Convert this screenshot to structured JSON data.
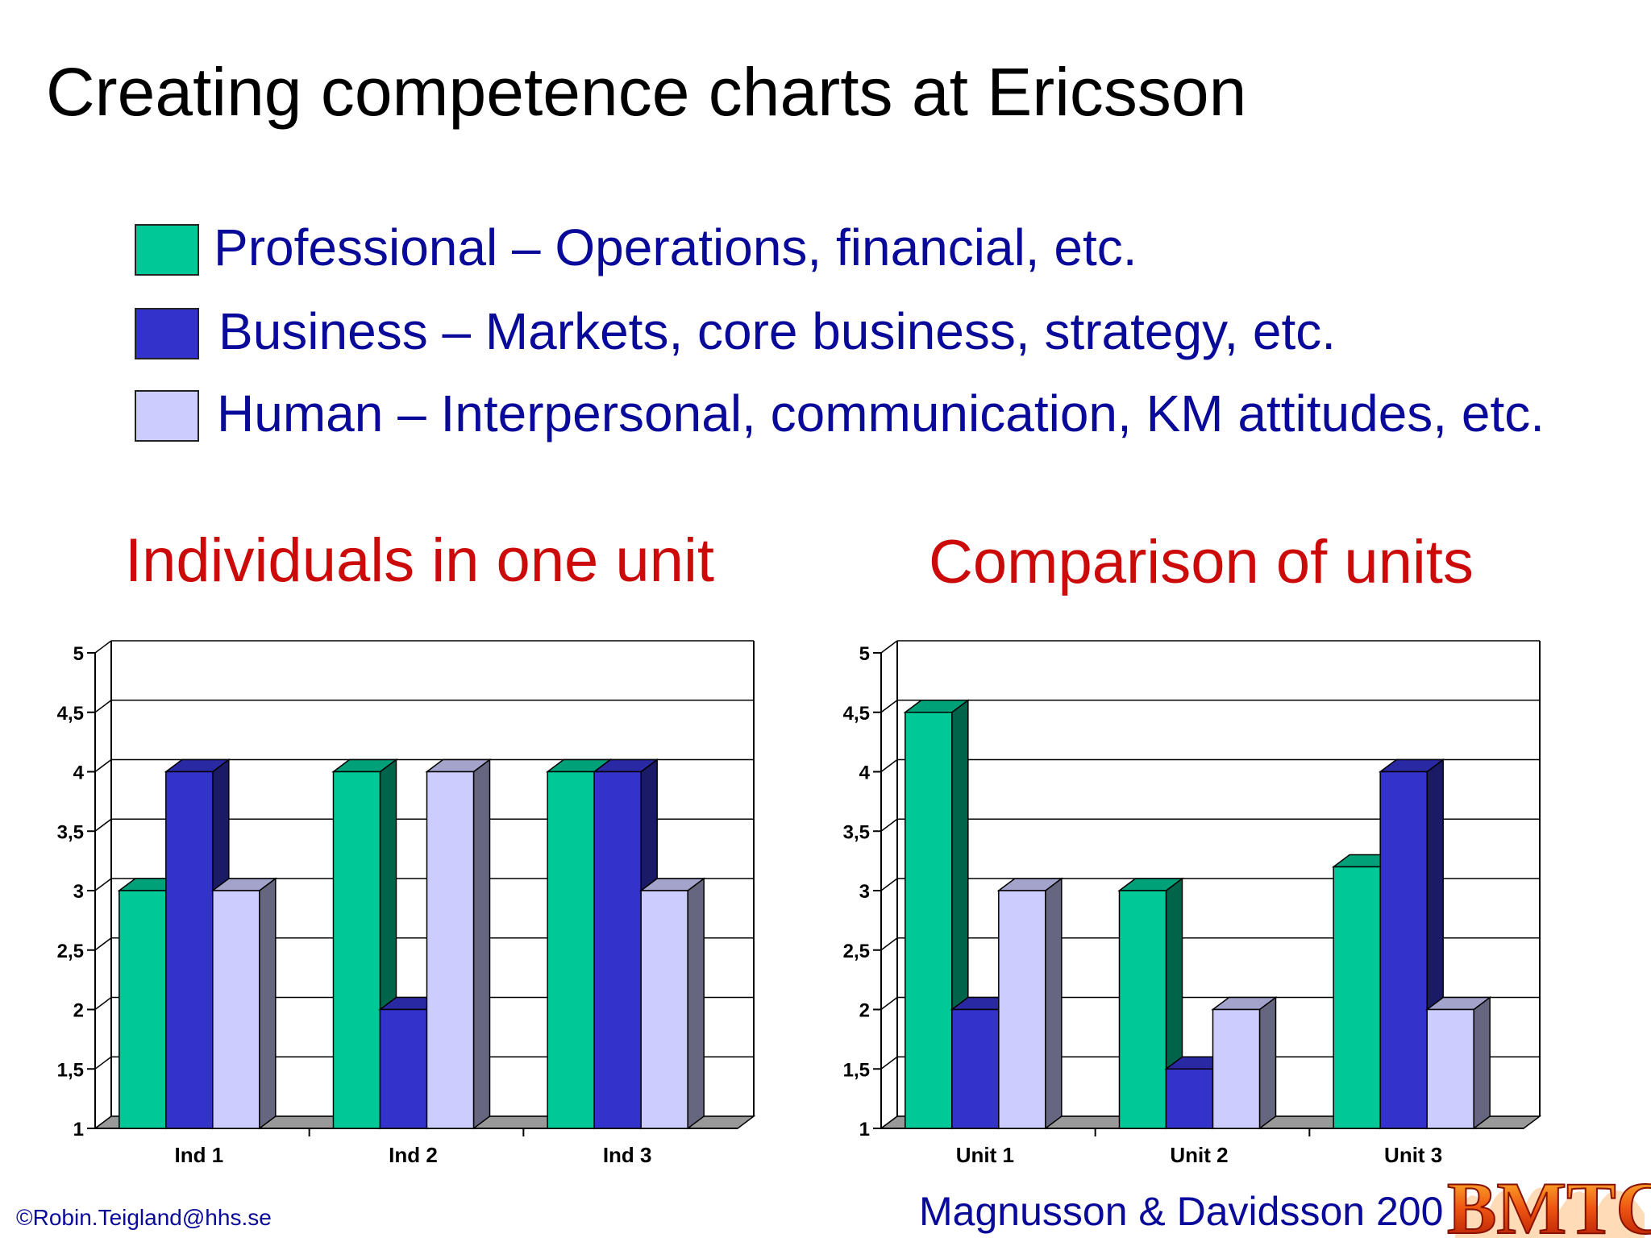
{
  "slide": {
    "title": "Creating competence charts at Ericsson",
    "footer_left": "©Robin.Teigland@hhs.se",
    "footer_right": "Magnusson & Davidsson 200",
    "logo_text": "BMTC"
  },
  "colors": {
    "professional": "#00c896",
    "business": "#3333cc",
    "human": "#ccccff",
    "legend_text": "#0a0a9a",
    "chart_title": "#cc0a0a"
  },
  "legend": [
    {
      "label": "Professional – Operations, financial, etc.",
      "color": "#00c896"
    },
    {
      "label": "Business – Markets, core business, strategy, etc.",
      "color": "#3333cc"
    },
    {
      "label": "Human – Interpersonal, communication, KM attitudes, etc.",
      "color": "#ccccff"
    }
  ],
  "chart_data": [
    {
      "type": "bar",
      "title": "Individuals in one unit",
      "categories": [
        "Ind 1",
        "Ind 2",
        "Ind 3"
      ],
      "series": [
        {
          "values": [
            3,
            4,
            4
          ]
        },
        {
          "values": [
            4,
            2,
            4
          ]
        },
        {
          "values": [
            3,
            4,
            3
          ]
        }
      ],
      "ylim": [
        1,
        5
      ],
      "yticks": [
        "1",
        "1,5",
        "2",
        "2,5",
        "3",
        "3,5",
        "4",
        "4,5",
        "5"
      ],
      "grid": true
    },
    {
      "type": "bar",
      "title": "Comparison of units",
      "categories": [
        "Unit 1",
        "Unit 2",
        "Unit 3"
      ],
      "series": [
        {
          "values": [
            4.5,
            3,
            3.2
          ]
        },
        {
          "values": [
            2,
            1.5,
            4
          ]
        },
        {
          "values": [
            3,
            2,
            2
          ]
        }
      ],
      "ylim": [
        1,
        5
      ],
      "yticks": [
        "1",
        "1,5",
        "2",
        "2,5",
        "3",
        "3,5",
        "4",
        "4,5",
        "5"
      ],
      "grid": true
    }
  ]
}
